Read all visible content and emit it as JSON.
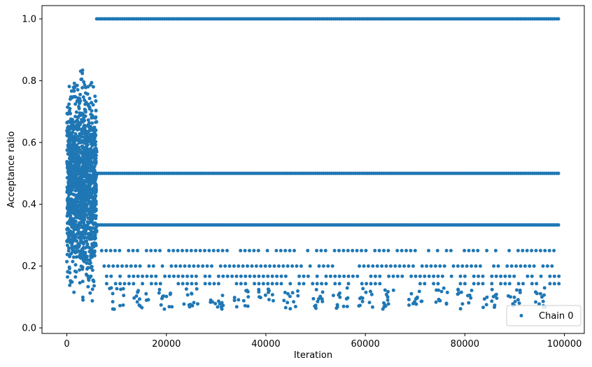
{
  "chart_data": {
    "type": "scatter",
    "xlabel": "Iteration",
    "ylabel": "Acceptance ratio",
    "xlim": [
      -5000,
      104000
    ],
    "ylim": [
      -0.018,
      1.043
    ],
    "xticks": [
      0,
      20000,
      40000,
      60000,
      80000,
      100000
    ],
    "yticks": [
      0.0,
      0.2,
      0.4,
      0.6,
      0.8,
      1.0
    ],
    "grid": false,
    "legend": {
      "position": "bottom-right",
      "entries": [
        "Chain 0"
      ]
    },
    "series": [
      {
        "name": "Chain 0",
        "color": "#1f77b4",
        "marker": "circle",
        "burn_in": {
          "x_range": [
            0,
            6000
          ],
          "y_range": [
            0.03,
            0.89
          ]
        },
        "plateau_segments": [
          {
            "y": 1.0,
            "x_range": [
              6000,
              99000
            ]
          },
          {
            "y": 0.5,
            "x_range": [
              6000,
              99000
            ]
          },
          {
            "y": 0.333,
            "x_range": [
              6000,
              99000
            ]
          },
          {
            "y": 0.25,
            "x_range": [
              7000,
              99000
            ]
          },
          {
            "y": 0.2,
            "x_range": [
              7500,
              99000
            ]
          },
          {
            "y": 0.167,
            "x_range": [
              8000,
              99000
            ]
          },
          {
            "y": 0.143,
            "x_range": [
              8000,
              99000
            ]
          }
        ],
        "low_clusters_x": [
          10000,
          15000,
          20000,
          25000,
          30000,
          35000,
          40000,
          45000,
          50000,
          55000,
          60000,
          65000,
          70000,
          75000,
          80000,
          85000,
          90000,
          95000
        ],
        "low_clusters_y_range": [
          0.06,
          0.13
        ]
      }
    ]
  }
}
